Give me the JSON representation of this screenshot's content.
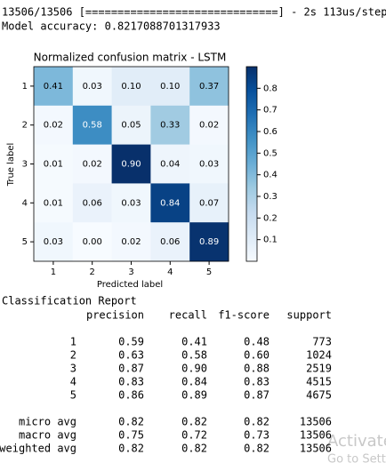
{
  "console": [
    "13506/13506 [==============================] - 2s 113us/step",
    "Model accuracy: 0.8217088701317933"
  ],
  "chart_data": {
    "type": "heatmap",
    "title": "Normalized confusion matrix - LSTM",
    "xlabel": "Predicted label",
    "ylabel": "True label",
    "x_categories": [
      "1",
      "2",
      "3",
      "4",
      "5"
    ],
    "y_categories": [
      "1",
      "2",
      "3",
      "4",
      "5"
    ],
    "values": [
      [
        0.41,
        0.03,
        0.1,
        0.1,
        0.37
      ],
      [
        0.02,
        0.58,
        0.05,
        0.33,
        0.02
      ],
      [
        0.01,
        0.02,
        0.9,
        0.04,
        0.03
      ],
      [
        0.01,
        0.06,
        0.03,
        0.84,
        0.07
      ],
      [
        0.03,
        0.0,
        0.02,
        0.06,
        0.89
      ]
    ],
    "value_labels": [
      [
        "0.41",
        "0.03",
        "0.10",
        "0.10",
        "0.37"
      ],
      [
        "0.02",
        "0.58",
        "0.05",
        "0.33",
        "0.02"
      ],
      [
        "0.01",
        "0.02",
        "0.90",
        "0.04",
        "0.03"
      ],
      [
        "0.01",
        "0.06",
        "0.03",
        "0.84",
        "0.07"
      ],
      [
        "0.03",
        "0.00",
        "0.02",
        "0.06",
        "0.89"
      ]
    ],
    "colormap": "Blues",
    "clim": [
      0,
      0.9
    ],
    "colorbar_ticks": [
      0.1,
      0.2,
      0.3,
      0.4,
      0.5,
      0.6,
      0.7,
      0.8
    ]
  },
  "report": {
    "title": "Classification Report",
    "header": [
      "precision",
      "recall",
      "f1-score",
      "support"
    ],
    "rows": [
      [
        "1",
        "0.59",
        "0.41",
        "0.48",
        "773"
      ],
      [
        "2",
        "0.63",
        "0.58",
        "0.60",
        "1024"
      ],
      [
        "3",
        "0.87",
        "0.90",
        "0.88",
        "2519"
      ],
      [
        "4",
        "0.83",
        "0.84",
        "0.83",
        "4515"
      ],
      [
        "5",
        "0.86",
        "0.89",
        "0.87",
        "4675"
      ]
    ],
    "avg_rows": [
      [
        "micro avg",
        "0.82",
        "0.82",
        "0.82",
        "13506"
      ],
      [
        "macro avg",
        "0.75",
        "0.72",
        "0.73",
        "13506"
      ],
      [
        "weighted avg",
        "0.82",
        "0.82",
        "0.82",
        "13506"
      ]
    ]
  },
  "watermark": [
    "Activate",
    "Go to Sett"
  ]
}
